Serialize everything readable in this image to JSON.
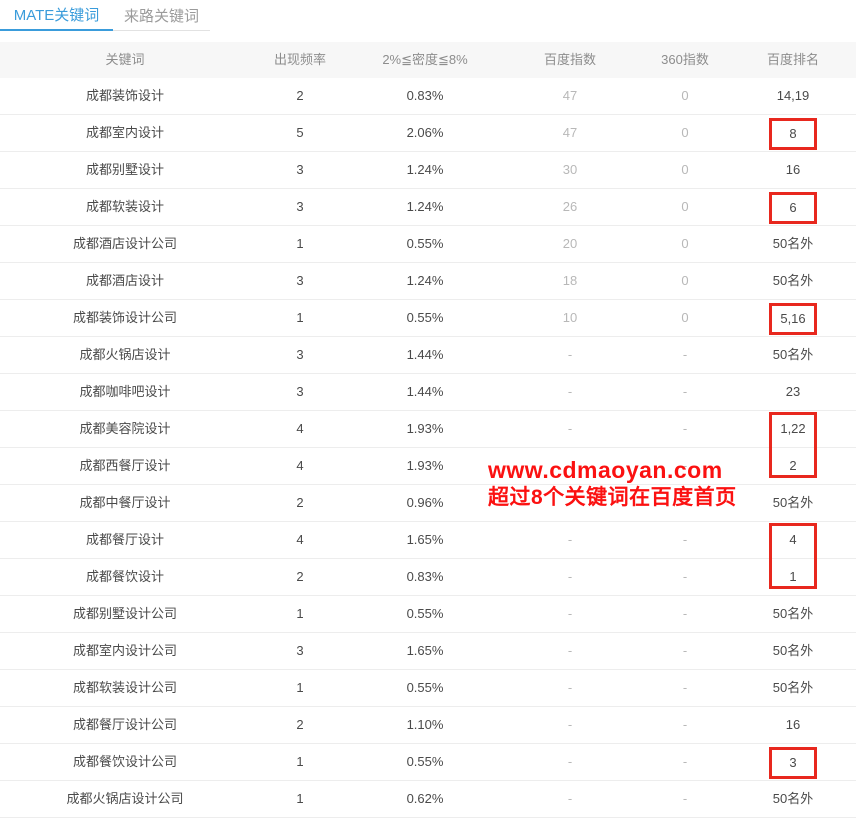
{
  "tabs": [
    {
      "label": "MATE关键词",
      "active": true
    },
    {
      "label": "来路关键词",
      "active": false
    }
  ],
  "table": {
    "columns": [
      "关键词",
      "出现频率",
      "2%≦密度≦8%",
      "百度指数",
      "360指数",
      "百度排名"
    ],
    "rows": [
      {
        "keyword": "成都装饰设计",
        "frequency": "2",
        "density": "0.83%",
        "baidu_index": "47",
        "index_360": "0",
        "rank": "14,19",
        "box": ""
      },
      {
        "keyword": "成都室内设计",
        "frequency": "5",
        "density": "2.06%",
        "baidu_index": "47",
        "index_360": "0",
        "rank": "8",
        "box": "single"
      },
      {
        "keyword": "成都别墅设计",
        "frequency": "3",
        "density": "1.24%",
        "baidu_index": "30",
        "index_360": "0",
        "rank": "16",
        "box": ""
      },
      {
        "keyword": "成都软装设计",
        "frequency": "3",
        "density": "1.24%",
        "baidu_index": "26",
        "index_360": "0",
        "rank": "6",
        "box": "single"
      },
      {
        "keyword": "成都酒店设计公司",
        "frequency": "1",
        "density": "0.55%",
        "baidu_index": "20",
        "index_360": "0",
        "rank": "50名外",
        "box": ""
      },
      {
        "keyword": "成都酒店设计",
        "frequency": "3",
        "density": "1.24%",
        "baidu_index": "18",
        "index_360": "0",
        "rank": "50名外",
        "box": ""
      },
      {
        "keyword": "成都装饰设计公司",
        "frequency": "1",
        "density": "0.55%",
        "baidu_index": "10",
        "index_360": "0",
        "rank": "5,16",
        "box": "single"
      },
      {
        "keyword": "成都火锅店设计",
        "frequency": "3",
        "density": "1.44%",
        "baidu_index": "-",
        "index_360": "-",
        "rank": "50名外",
        "box": ""
      },
      {
        "keyword": "成都咖啡吧设计",
        "frequency": "3",
        "density": "1.44%",
        "baidu_index": "-",
        "index_360": "-",
        "rank": "23",
        "box": ""
      },
      {
        "keyword": "成都美容院设计",
        "frequency": "4",
        "density": "1.93%",
        "baidu_index": "-",
        "index_360": "-",
        "rank": "1,22",
        "box": "tall-start"
      },
      {
        "keyword": "成都西餐厅设计",
        "frequency": "4",
        "density": "1.93%",
        "baidu_index": "-",
        "index_360": "-",
        "rank": "2",
        "box": "tall-end"
      },
      {
        "keyword": "成都中餐厅设计",
        "frequency": "2",
        "density": "0.96%",
        "baidu_index": "-",
        "index_360": "-",
        "rank": "50名外",
        "box": ""
      },
      {
        "keyword": "成都餐厅设计",
        "frequency": "4",
        "density": "1.65%",
        "baidu_index": "-",
        "index_360": "-",
        "rank": "4",
        "box": "tall-start"
      },
      {
        "keyword": "成都餐饮设计",
        "frequency": "2",
        "density": "0.83%",
        "baidu_index": "-",
        "index_360": "-",
        "rank": "1",
        "box": "tall-end"
      },
      {
        "keyword": "成都别墅设计公司",
        "frequency": "1",
        "density": "0.55%",
        "baidu_index": "-",
        "index_360": "-",
        "rank": "50名外",
        "box": ""
      },
      {
        "keyword": "成都室内设计公司",
        "frequency": "3",
        "density": "1.65%",
        "baidu_index": "-",
        "index_360": "-",
        "rank": "50名外",
        "box": ""
      },
      {
        "keyword": "成都软装设计公司",
        "frequency": "1",
        "density": "0.55%",
        "baidu_index": "-",
        "index_360": "-",
        "rank": "50名外",
        "box": ""
      },
      {
        "keyword": "成都餐厅设计公司",
        "frequency": "2",
        "density": "1.10%",
        "baidu_index": "-",
        "index_360": "-",
        "rank": "16",
        "box": ""
      },
      {
        "keyword": "成都餐饮设计公司",
        "frequency": "1",
        "density": "0.55%",
        "baidu_index": "-",
        "index_360": "-",
        "rank": "3",
        "box": "single"
      },
      {
        "keyword": "成都火锅店设计公司",
        "frequency": "1",
        "density": "0.62%",
        "baidu_index": "-",
        "index_360": "-",
        "rank": "50名外",
        "box": ""
      }
    ]
  },
  "watermark": {
    "line1": "www.cdmaoyan.com",
    "line2": "超过8个关键词在百度首页"
  },
  "colors": {
    "accent_blue": "#3a9cdb",
    "highlight_red": "#e8281e",
    "watermark_red": "#fb1111",
    "header_bg": "#f7f7f7",
    "dim_text": "#b8b8b8"
  }
}
